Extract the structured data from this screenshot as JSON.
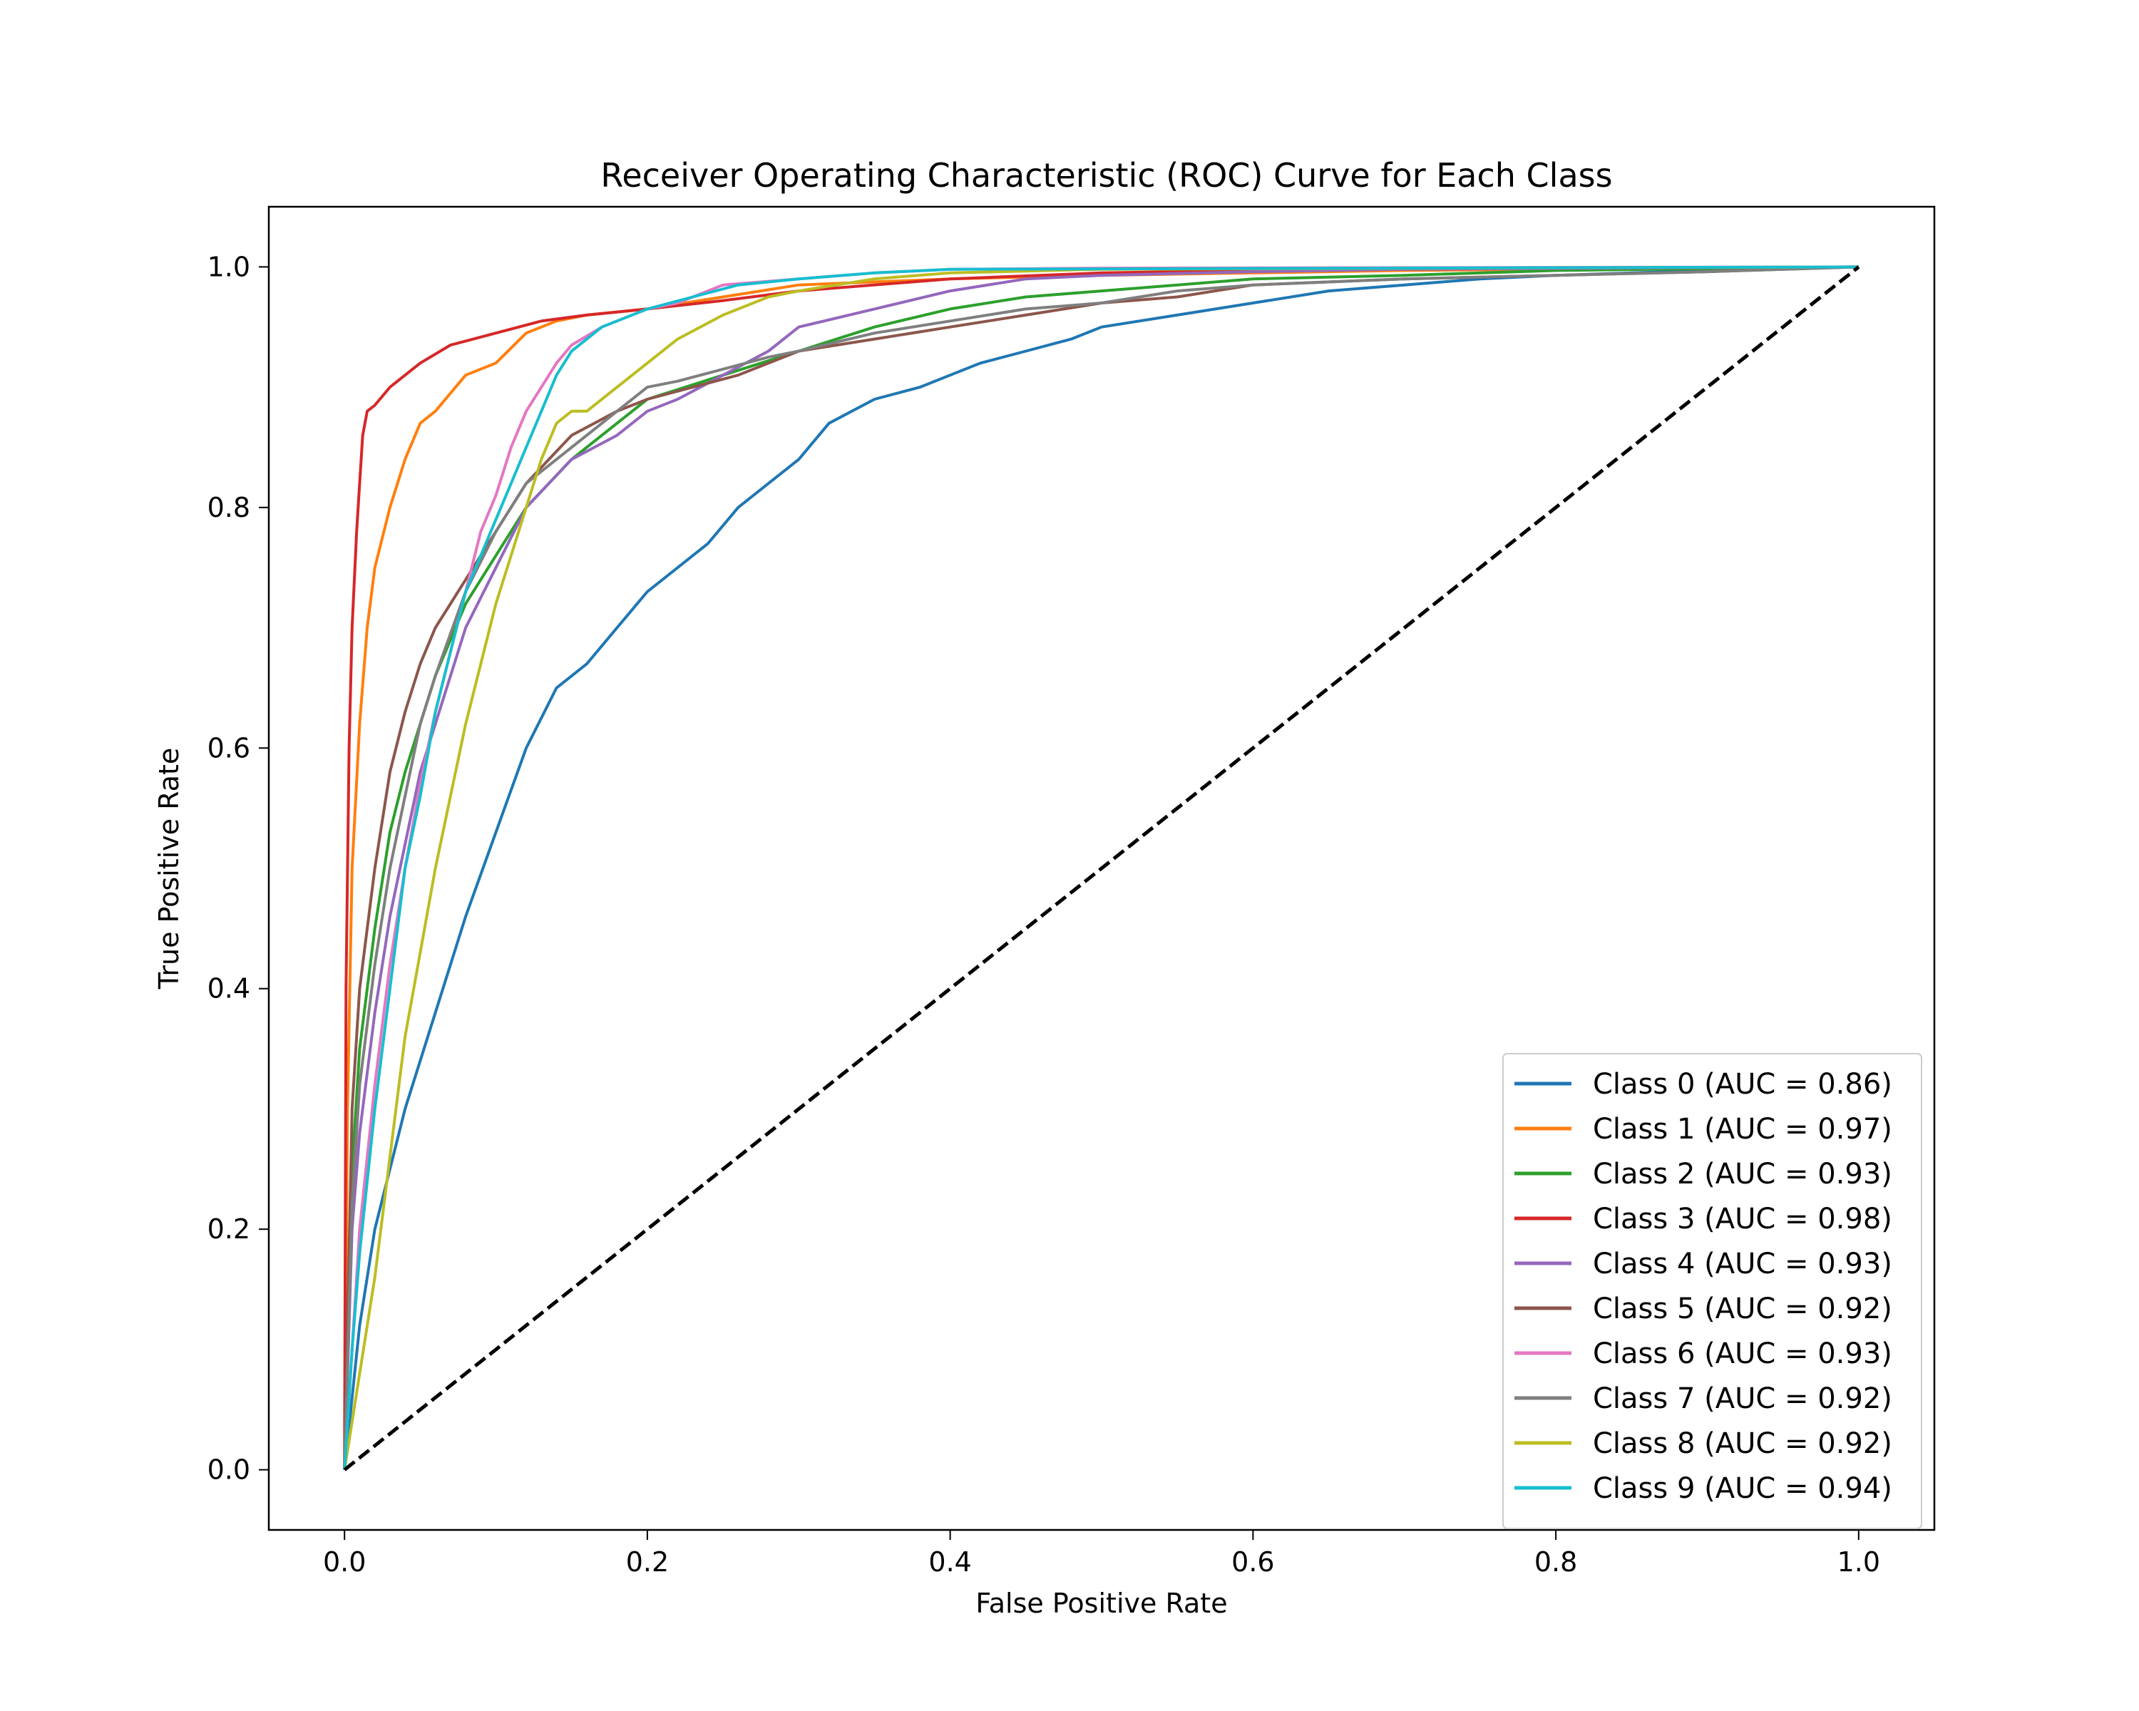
{
  "chart_data": {
    "type": "line",
    "title": "Receiver Operating Characteristic (ROC) Curve for Each Class",
    "xlabel": "False Positive Rate",
    "ylabel": "True Positive Rate",
    "xlim": [
      -0.05,
      1.05
    ],
    "ylim": [
      -0.05,
      1.05
    ],
    "xticks": [
      "0.0",
      "0.2",
      "0.4",
      "0.6",
      "0.8",
      "1.0"
    ],
    "yticks": [
      "0.0",
      "0.2",
      "0.4",
      "0.6",
      "0.8",
      "1.0"
    ],
    "grid": false,
    "legend_position": "lower-right",
    "series": [
      {
        "name": "Class 0 (AUC = 0.86)",
        "color": "#1f77b4",
        "x": [
          0,
          0.01,
          0.02,
          0.04,
          0.06,
          0.08,
          0.1,
          0.12,
          0.14,
          0.16,
          0.18,
          0.2,
          0.22,
          0.24,
          0.26,
          0.28,
          0.3,
          0.32,
          0.35,
          0.38,
          0.4,
          0.42,
          0.45,
          0.48,
          0.5,
          0.55,
          0.6,
          0.65,
          0.7,
          0.75,
          0.8,
          0.85,
          0.9,
          1.0
        ],
        "y": [
          0,
          0.12,
          0.2,
          0.3,
          0.38,
          0.46,
          0.53,
          0.6,
          0.65,
          0.67,
          0.7,
          0.73,
          0.75,
          0.77,
          0.8,
          0.82,
          0.84,
          0.87,
          0.89,
          0.9,
          0.91,
          0.92,
          0.93,
          0.94,
          0.95,
          0.96,
          0.97,
          0.98,
          0.985,
          0.99,
          0.993,
          0.995,
          0.997,
          1.0
        ]
      },
      {
        "name": "Class 1 (AUC = 0.97)",
        "color": "#ff7f0e",
        "x": [
          0,
          0.002,
          0.005,
          0.01,
          0.015,
          0.02,
          0.03,
          0.04,
          0.05,
          0.06,
          0.08,
          0.1,
          0.12,
          0.14,
          0.16,
          0.2,
          0.25,
          0.3,
          0.4,
          0.5,
          0.6,
          0.7,
          0.8,
          1.0
        ],
        "y": [
          0,
          0.3,
          0.5,
          0.62,
          0.7,
          0.75,
          0.8,
          0.84,
          0.87,
          0.88,
          0.91,
          0.92,
          0.945,
          0.955,
          0.96,
          0.965,
          0.975,
          0.985,
          0.99,
          0.993,
          0.995,
          0.997,
          0.998,
          1.0
        ]
      },
      {
        "name": "Class 2 (AUC = 0.93)",
        "color": "#2ca02c",
        "x": [
          0,
          0.005,
          0.01,
          0.02,
          0.03,
          0.04,
          0.05,
          0.06,
          0.08,
          0.1,
          0.12,
          0.15,
          0.18,
          0.2,
          0.25,
          0.3,
          0.35,
          0.4,
          0.45,
          0.5,
          0.55,
          0.6,
          0.7,
          0.8,
          1.0
        ],
        "y": [
          0,
          0.25,
          0.35,
          0.45,
          0.53,
          0.58,
          0.62,
          0.66,
          0.72,
          0.76,
          0.8,
          0.84,
          0.87,
          0.89,
          0.91,
          0.93,
          0.95,
          0.965,
          0.975,
          0.98,
          0.985,
          0.99,
          0.993,
          0.997,
          1.0
        ]
      },
      {
        "name": "Class 3 (AUC = 0.98)",
        "color": "#d62728",
        "x": [
          0,
          0.001,
          0.003,
          0.005,
          0.008,
          0.01,
          0.012,
          0.015,
          0.02,
          0.03,
          0.05,
          0.07,
          0.1,
          0.13,
          0.16,
          0.2,
          0.25,
          0.3,
          0.4,
          0.5,
          0.6,
          0.7,
          0.8,
          1.0
        ],
        "y": [
          0,
          0.4,
          0.6,
          0.7,
          0.78,
          0.82,
          0.86,
          0.88,
          0.885,
          0.9,
          0.92,
          0.935,
          0.945,
          0.955,
          0.96,
          0.965,
          0.972,
          0.98,
          0.99,
          0.995,
          0.997,
          0.998,
          0.999,
          1.0
        ]
      },
      {
        "name": "Class 4 (AUC = 0.93)",
        "color": "#9467bd",
        "x": [
          0,
          0.005,
          0.01,
          0.02,
          0.03,
          0.04,
          0.05,
          0.06,
          0.08,
          0.1,
          0.12,
          0.15,
          0.18,
          0.2,
          0.22,
          0.25,
          0.28,
          0.3,
          0.35,
          0.4,
          0.45,
          0.5,
          0.6,
          0.7,
          1.0
        ],
        "y": [
          0,
          0.2,
          0.28,
          0.38,
          0.46,
          0.52,
          0.58,
          0.62,
          0.7,
          0.75,
          0.8,
          0.84,
          0.86,
          0.88,
          0.89,
          0.91,
          0.93,
          0.95,
          0.965,
          0.98,
          0.99,
          0.993,
          0.996,
          0.998,
          1.0
        ]
      },
      {
        "name": "Class 5 (AUC = 0.92)",
        "color": "#8c564b",
        "x": [
          0,
          0.005,
          0.01,
          0.02,
          0.03,
          0.04,
          0.05,
          0.06,
          0.08,
          0.1,
          0.12,
          0.15,
          0.18,
          0.2,
          0.23,
          0.26,
          0.3,
          0.35,
          0.4,
          0.45,
          0.5,
          0.55,
          0.6,
          0.7,
          0.8,
          0.9,
          1.0
        ],
        "y": [
          0,
          0.3,
          0.4,
          0.5,
          0.58,
          0.63,
          0.67,
          0.7,
          0.74,
          0.78,
          0.82,
          0.86,
          0.88,
          0.89,
          0.9,
          0.91,
          0.93,
          0.94,
          0.95,
          0.96,
          0.97,
          0.975,
          0.985,
          0.99,
          0.993,
          0.996,
          1.0
        ]
      },
      {
        "name": "Class 6 (AUC = 0.93)",
        "color": "#e377c2",
        "x": [
          0,
          0.005,
          0.01,
          0.02,
          0.03,
          0.04,
          0.05,
          0.06,
          0.07,
          0.08,
          0.09,
          0.1,
          0.11,
          0.12,
          0.13,
          0.14,
          0.15,
          0.17,
          0.2,
          0.22,
          0.25,
          0.3,
          0.35,
          0.4,
          0.5,
          1.0
        ],
        "y": [
          0,
          0.1,
          0.2,
          0.32,
          0.42,
          0.5,
          0.57,
          0.63,
          0.68,
          0.73,
          0.78,
          0.81,
          0.85,
          0.88,
          0.9,
          0.92,
          0.935,
          0.95,
          0.965,
          0.97,
          0.985,
          0.99,
          0.995,
          0.998,
          0.999,
          1.0
        ]
      },
      {
        "name": "Class 7 (AUC = 0.92)",
        "color": "#7f7f7f",
        "x": [
          0,
          0.005,
          0.01,
          0.02,
          0.03,
          0.04,
          0.05,
          0.06,
          0.08,
          0.1,
          0.12,
          0.15,
          0.18,
          0.2,
          0.22,
          0.25,
          0.28,
          0.3,
          0.35,
          0.4,
          0.45,
          0.5,
          0.55,
          0.6,
          0.7,
          0.8,
          0.9,
          1.0
        ],
        "y": [
          0,
          0.22,
          0.32,
          0.42,
          0.5,
          0.56,
          0.62,
          0.66,
          0.73,
          0.78,
          0.82,
          0.85,
          0.88,
          0.9,
          0.905,
          0.915,
          0.925,
          0.93,
          0.945,
          0.955,
          0.965,
          0.97,
          0.98,
          0.985,
          0.99,
          0.993,
          0.996,
          1.0
        ]
      },
      {
        "name": "Class 8 (AUC = 0.92)",
        "color": "#bcbd22",
        "x": [
          0,
          0.01,
          0.02,
          0.03,
          0.04,
          0.05,
          0.06,
          0.07,
          0.08,
          0.09,
          0.1,
          0.11,
          0.12,
          0.13,
          0.14,
          0.15,
          0.16,
          0.18,
          0.2,
          0.22,
          0.25,
          0.28,
          0.3,
          0.35,
          0.4,
          0.5,
          1.0
        ],
        "y": [
          0,
          0.08,
          0.16,
          0.26,
          0.36,
          0.43,
          0.5,
          0.56,
          0.62,
          0.67,
          0.72,
          0.76,
          0.8,
          0.84,
          0.87,
          0.88,
          0.88,
          0.9,
          0.92,
          0.94,
          0.96,
          0.975,
          0.98,
          0.99,
          0.995,
          0.998,
          1.0
        ]
      },
      {
        "name": "Class 9 (AUC = 0.94)",
        "color": "#17becf",
        "x": [
          0,
          0.005,
          0.01,
          0.02,
          0.03,
          0.04,
          0.05,
          0.06,
          0.07,
          0.08,
          0.09,
          0.1,
          0.11,
          0.12,
          0.13,
          0.14,
          0.15,
          0.17,
          0.2,
          0.23,
          0.26,
          0.3,
          0.35,
          0.4,
          1.0
        ],
        "y": [
          0,
          0.1,
          0.18,
          0.3,
          0.4,
          0.5,
          0.56,
          0.63,
          0.68,
          0.73,
          0.76,
          0.79,
          0.82,
          0.85,
          0.88,
          0.91,
          0.93,
          0.95,
          0.965,
          0.975,
          0.985,
          0.99,
          0.995,
          0.998,
          1.0
        ]
      }
    ],
    "reference_line": {
      "x": [
        0,
        1
      ],
      "y": [
        0,
        1
      ],
      "color": "#000000",
      "style": "dashed"
    }
  }
}
